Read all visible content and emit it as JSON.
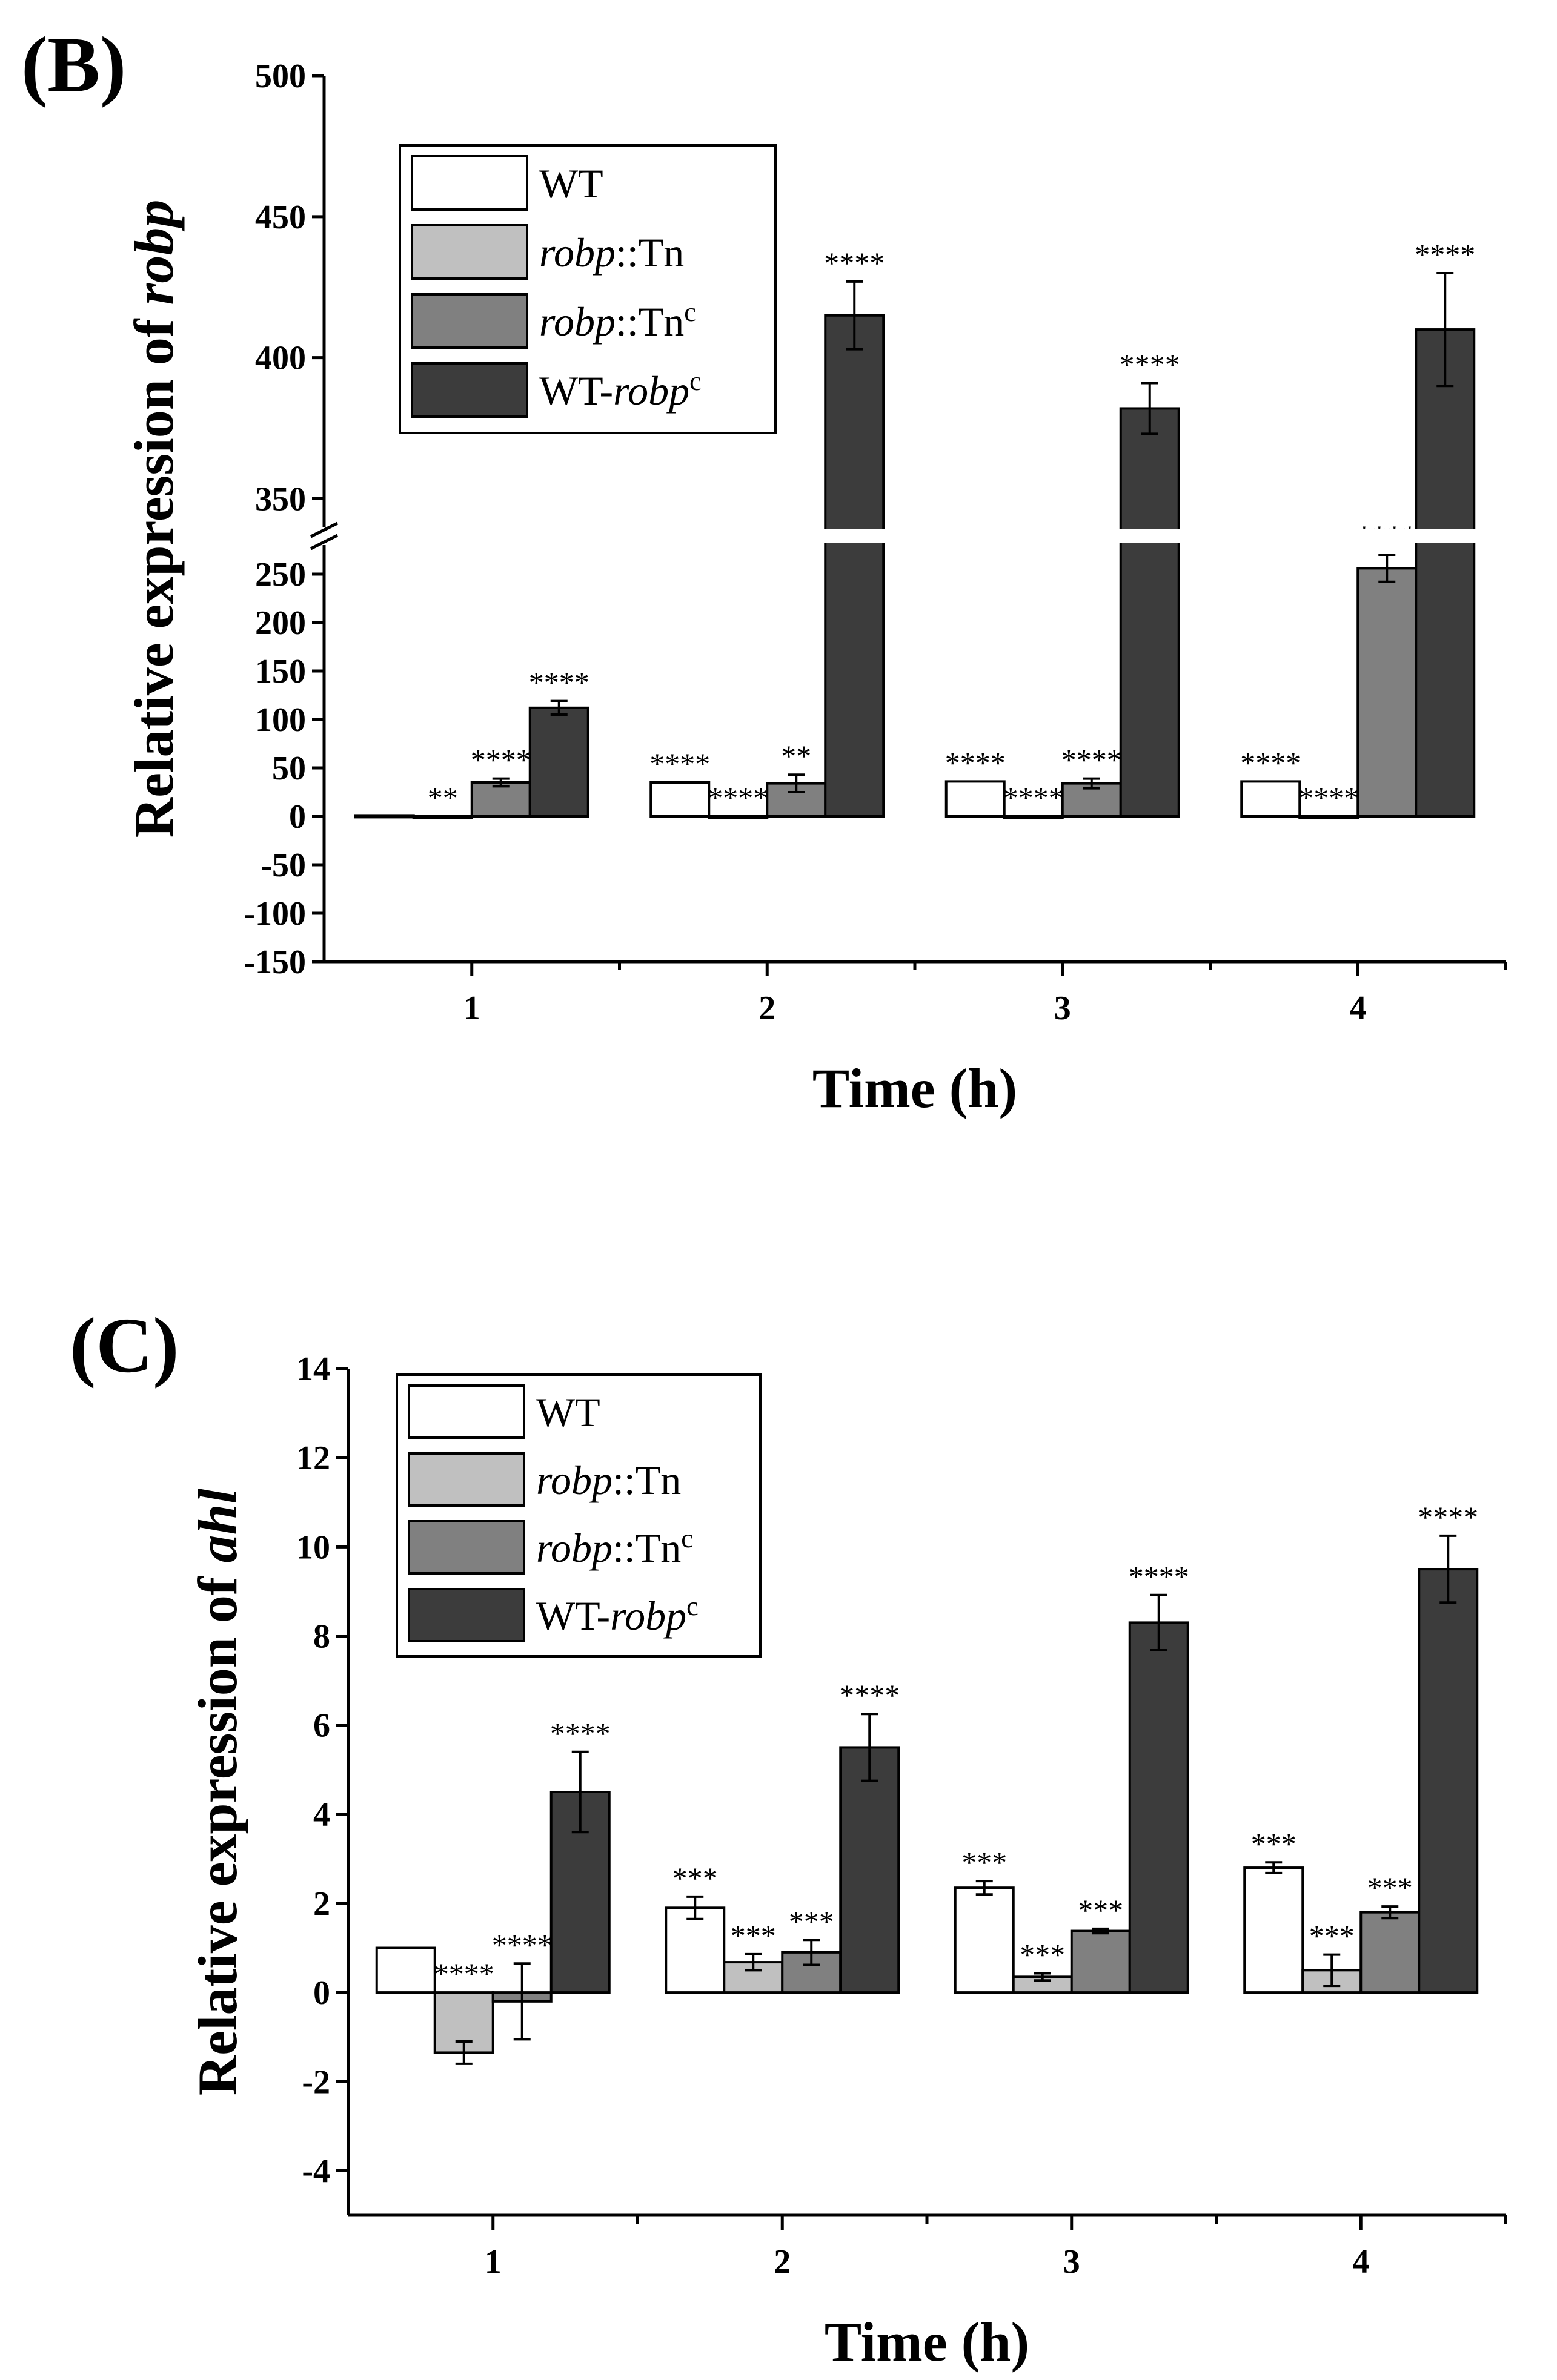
{
  "colors": {
    "WT": "#ffffff",
    "robp::Tn": "#c0c0c0",
    "robp::Tnc": "#808080",
    "WT-robpc": "#3c3c3c",
    "axis": "#000000"
  },
  "legend_entries": [
    {
      "key": "WT",
      "parts": [
        {
          "text": "WT",
          "style": "normal"
        }
      ]
    },
    {
      "key": "robp::Tn",
      "parts": [
        {
          "text": "robp",
          "style": "italic"
        },
        {
          "text": "::Tn",
          "style": "normal"
        }
      ]
    },
    {
      "key": "robp::Tnc",
      "parts": [
        {
          "text": "robp",
          "style": "italic"
        },
        {
          "text": "::Tn",
          "style": "normal"
        },
        {
          "text": "c",
          "style": "sup"
        }
      ]
    },
    {
      "key": "WT-robpc",
      "parts": [
        {
          "text": "WT-",
          "style": "normal"
        },
        {
          "text": "robp",
          "style": "italic"
        },
        {
          "text": "c",
          "style": "sup"
        }
      ]
    }
  ],
  "chart_data": [
    {
      "type": "bar",
      "panel_label": "(B)",
      "title": "",
      "xlabel": "Time (h)",
      "ylabel_parts": [
        {
          "text": "Relative expression of ",
          "style": "normal"
        },
        {
          "text": "robp",
          "style": "italic"
        }
      ],
      "categories": [
        "1",
        "2",
        "3",
        "4"
      ],
      "y_axis_break": {
        "lower_range": [
          -150,
          280
        ],
        "upper_range": [
          340,
          500
        ],
        "break_between": [
          280,
          340
        ]
      },
      "lower_ticks": [
        "-150",
        "-100",
        "-50",
        "0",
        "50",
        "100",
        "150",
        "200",
        "250"
      ],
      "upper_ticks": [
        "350",
        "400",
        "450",
        "500"
      ],
      "series": [
        {
          "name": "WT",
          "values": [
            1,
            35,
            36,
            36
          ],
          "errors": [
            0,
            0,
            0,
            0
          ],
          "significance": [
            "",
            "****",
            "****",
            "****"
          ]
        },
        {
          "name": "robp::Tn",
          "values": [
            0,
            0,
            0,
            0
          ],
          "errors": [
            0,
            0,
            0,
            0
          ],
          "significance": [
            "**",
            "****",
            "****",
            "****"
          ]
        },
        {
          "name": "robp::Tnc",
          "values": [
            35,
            34,
            34,
            256
          ],
          "errors": [
            4,
            9,
            5,
            14
          ],
          "significance": [
            "****",
            "**",
            "****",
            "****"
          ]
        },
        {
          "name": "WT-robpc",
          "values": [
            112,
            415,
            382,
            410
          ],
          "errors": [
            7,
            12,
            9,
            20
          ],
          "significance": [
            "****",
            "****",
            "****",
            "****"
          ]
        }
      ]
    },
    {
      "type": "bar",
      "panel_label": "(C)",
      "title": "",
      "xlabel": "Time (h)",
      "ylabel_parts": [
        {
          "text": "Relative expression of ",
          "style": "normal"
        },
        {
          "text": "ahl",
          "style": "italic"
        }
      ],
      "categories": [
        "1",
        "2",
        "3",
        "4"
      ],
      "ylim": [
        -5,
        14
      ],
      "ticks": [
        "-4",
        "-2",
        "0",
        "2",
        "4",
        "6",
        "8",
        "10",
        "12",
        "14"
      ],
      "series": [
        {
          "name": "WT",
          "values": [
            1,
            1.9,
            2.35,
            2.8
          ],
          "errors": [
            0,
            0.25,
            0.15,
            0.12
          ],
          "significance": [
            "",
            "***",
            "***",
            "***"
          ]
        },
        {
          "name": "robp::Tn",
          "values": [
            -1.35,
            0.68,
            0.35,
            0.5
          ],
          "errors": [
            0.25,
            0.18,
            0.08,
            0.35
          ],
          "significance": [
            "****",
            "***",
            "***",
            "***"
          ]
        },
        {
          "name": "robp::Tnc",
          "values": [
            -0.2,
            0.9,
            1.38,
            1.8
          ],
          "errors": [
            0.85,
            0.28,
            0.05,
            0.13
          ],
          "significance": [
            "****",
            "***",
            "***",
            "***"
          ]
        },
        {
          "name": "WT-robpc",
          "values": [
            4.5,
            5.5,
            8.3,
            9.5
          ],
          "errors": [
            0.9,
            0.75,
            0.62,
            0.75
          ],
          "significance": [
            "****",
            "****",
            "****",
            "****"
          ]
        }
      ]
    }
  ]
}
